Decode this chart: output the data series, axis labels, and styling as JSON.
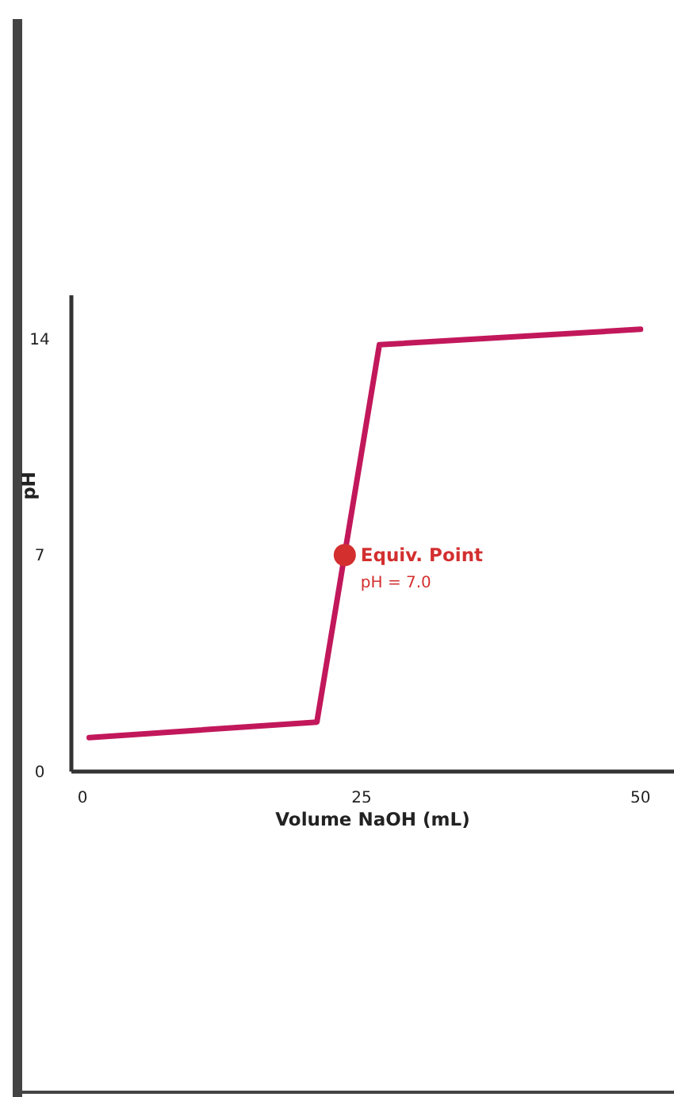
{
  "chart_data": {
    "type": "line",
    "xlabel": "Volume NaOH (mL)",
    "ylabel": "pH",
    "xlim": [
      -1,
      53
    ],
    "ylim": [
      0,
      15.4
    ],
    "xticks": [
      0,
      25,
      50
    ],
    "yticks": [
      0,
      7,
      14
    ],
    "grid": false,
    "series": [
      {
        "color": "#c2185b",
        "x": [
          0.6,
          21,
          26.6,
          50
        ],
        "values": [
          1.1,
          1.6,
          13.8,
          14.3
        ],
        "marker": "none",
        "line_style": "solid"
      },
      {
        "type": "scatter",
        "color": "#d32f2f",
        "x": [
          23.5
        ],
        "values": [
          7
        ],
        "marker": "circle"
      }
    ],
    "annotations": [
      {
        "text": "Equiv. Point",
        "x": 23.5,
        "y": 7
      },
      {
        "text": "pH = 7.0",
        "x": 23.5,
        "y": 7
      }
    ]
  }
}
